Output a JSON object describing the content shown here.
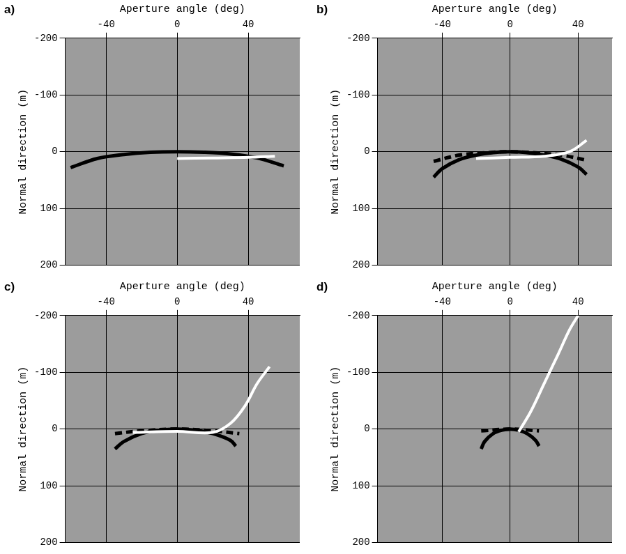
{
  "chart_data": [
    {
      "type": "line",
      "label": "a)",
      "x_label": "Aperture angle (deg)",
      "y_label": "Normal direction (m)",
      "xlim": [
        -63,
        69
      ],
      "xticks": [
        -40,
        0,
        40
      ],
      "ylim": [
        -200,
        200
      ],
      "yticks": [
        -200,
        -100,
        0,
        100,
        200
      ],
      "grid": true,
      "series": [
        {
          "color": "#ffffff",
          "line_style": "solid",
          "x": [
            0,
            20,
            40,
            55
          ],
          "values": [
            12,
            11,
            10,
            8
          ]
        },
        {
          "color": "#000000",
          "line_style": "solid",
          "x": [
            -60,
            -45,
            -30,
            -15,
            0,
            15,
            30,
            45,
            60
          ],
          "values": [
            28,
            12,
            5,
            1,
            0,
            1,
            4,
            11,
            25
          ]
        }
      ]
    },
    {
      "type": "line",
      "label": "b)",
      "x_label": "Aperture angle (deg)",
      "y_label": "Normal direction (m)",
      "xlim": [
        -78,
        60
      ],
      "xticks": [
        -40,
        0,
        40
      ],
      "ylim": [
        -200,
        200
      ],
      "yticks": [
        -200,
        -100,
        0,
        100,
        200
      ],
      "grid": true,
      "series": [
        {
          "color": "#ffffff",
          "line_style": "solid",
          "x": [
            -20,
            0,
            20,
            35,
            45
          ],
          "values": [
            12,
            10,
            8,
            0,
            -20
          ]
        },
        {
          "color": "#000000",
          "line_style": "solid",
          "x": [
            -45,
            -40,
            -30,
            -20,
            -10,
            0,
            10,
            20,
            30,
            40,
            45
          ],
          "values": [
            45,
            30,
            14,
            6,
            1.5,
            0,
            1.5,
            6,
            13,
            27,
            40
          ]
        },
        {
          "color": "#000000",
          "line_style": "dashed",
          "x": [
            -45,
            -30,
            -15,
            0,
            15,
            30,
            45
          ],
          "values": [
            17,
            6,
            2,
            0,
            2,
            6,
            15
          ]
        }
      ]
    },
    {
      "type": "line",
      "label": "c)",
      "x_label": "Aperture angle (deg)",
      "y_label": "Normal direction (m)",
      "xlim": [
        -63,
        69
      ],
      "xticks": [
        -40,
        0,
        40
      ],
      "ylim": [
        -200,
        200
      ],
      "yticks": [
        -200,
        -100,
        0,
        100,
        200
      ],
      "grid": true,
      "series": [
        {
          "color": "#ffffff",
          "line_style": "solid",
          "x": [
            -25,
            0,
            20,
            30,
            38,
            45,
            52
          ],
          "values": [
            6,
            4,
            6,
            -10,
            -40,
            -80,
            -110
          ]
        },
        {
          "color": "#000000",
          "line_style": "solid",
          "x": [
            -35,
            -30,
            -20,
            -10,
            0,
            10,
            20,
            30,
            33
          ],
          "values": [
            35,
            22,
            8,
            2,
            0,
            2,
            8,
            20,
            30
          ]
        },
        {
          "color": "#000000",
          "line_style": "dashed",
          "x": [
            -35,
            -20,
            0,
            20,
            35
          ],
          "values": [
            8,
            3,
            0,
            3,
            8
          ]
        }
      ]
    },
    {
      "type": "line",
      "label": "d)",
      "x_label": "Aperture angle (deg)",
      "y_label": "Normal direction (m)",
      "xlim": [
        -78,
        60
      ],
      "xticks": [
        -40,
        0,
        40
      ],
      "ylim": [
        -200,
        200
      ],
      "yticks": [
        -200,
        -100,
        0,
        100,
        200
      ],
      "grid": true,
      "series": [
        {
          "color": "#ffffff",
          "line_style": "solid",
          "x": [
            5,
            12,
            20,
            28,
            35,
            40
          ],
          "values": [
            5,
            -30,
            -80,
            -130,
            -175,
            -200
          ]
        },
        {
          "color": "#000000",
          "line_style": "solid",
          "x": [
            -17,
            -15,
            -10,
            -5,
            0,
            5,
            10,
            15,
            17
          ],
          "values": [
            35,
            22,
            8,
            2,
            0,
            2,
            8,
            20,
            30
          ]
        },
        {
          "color": "#000000",
          "line_style": "dashed",
          "x": [
            -17,
            0,
            17
          ],
          "values": [
            3,
            0,
            3
          ]
        }
      ]
    }
  ]
}
